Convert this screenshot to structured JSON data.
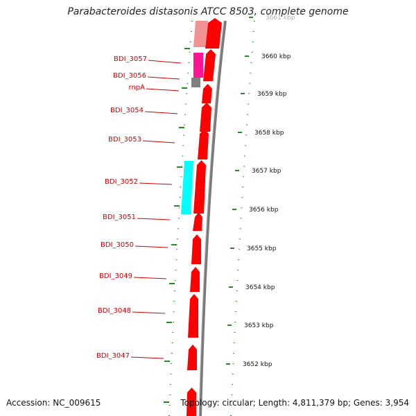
{
  "title": "Parabacteroides distasonis ATCC 8503, complete genome",
  "footer": {
    "accession": "Accession: NC_009615",
    "summary": "Topology: circular; Length: 4,811,379 bp; Genes: 3,954"
  },
  "colors": {
    "gene_red": "#ff0000",
    "label_red": "#cc0000",
    "cyan": "#00ffff",
    "magenta": "#ff1493",
    "pink": "#f08080",
    "gray": "#808080",
    "dots_green": "#228b22",
    "backbone": "#888888"
  },
  "kbp_ticks": [
    "3661 kbp",
    "3660 kbp",
    "3659 kbp",
    "3658 kbp",
    "3657 kbp",
    "3656 kbp",
    "3655 kbp",
    "3654 kbp",
    "3653 kbp",
    "3652 kbp"
  ],
  "gene_labels": [
    "BDI_3057",
    "BDI_3056",
    "rnpA",
    "BDI_3054",
    "BDI_3053",
    "BDI_3052",
    "BDI_3051",
    "BDI_3050",
    "BDI_3049",
    "BDI_3048",
    "BDI_3047"
  ]
}
